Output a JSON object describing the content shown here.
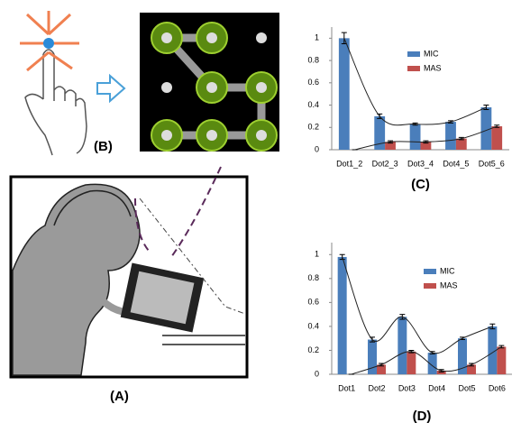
{
  "figure_labels": {
    "a": "(A)",
    "b": "(B)"
  },
  "chart_data": [
    {
      "type": "bar",
      "label": "(C)",
      "categories": [
        "Dot1_2",
        "Dot2_3",
        "Dot3_4",
        "Dot4_5",
        "Dot5_6"
      ],
      "series": [
        {
          "name": "MIC",
          "color": "#4a7ebb",
          "values": [
            1.0,
            0.3,
            0.23,
            0.25,
            0.38
          ],
          "errors": [
            0.05,
            0.02,
            0.01,
            0.01,
            0.02
          ]
        },
        {
          "name": "MAS",
          "color": "#c0504d",
          "values": [
            0.0,
            0.07,
            0.07,
            0.1,
            0.21
          ],
          "errors": [
            0.0,
            0.01,
            0.01,
            0.01,
            0.01
          ]
        }
      ],
      "ylim": [
        0,
        1.1
      ],
      "yticks": [
        0,
        0.2,
        0.4,
        0.6,
        0.8,
        1
      ]
    },
    {
      "type": "bar",
      "label": "(D)",
      "categories": [
        "Dot1",
        "Dot2",
        "Dot3",
        "Dot4",
        "Dot5",
        "Dot6"
      ],
      "series": [
        {
          "name": "MIC",
          "color": "#4a7ebb",
          "values": [
            0.98,
            0.29,
            0.48,
            0.18,
            0.3,
            0.4
          ],
          "errors": [
            0.02,
            0.02,
            0.02,
            0.01,
            0.01,
            0.02
          ]
        },
        {
          "name": "MAS",
          "color": "#c0504d",
          "values": [
            0.0,
            0.08,
            0.19,
            0.03,
            0.08,
            0.23
          ],
          "errors": [
            0.0,
            0.01,
            0.01,
            0.01,
            0.01,
            0.01
          ]
        }
      ],
      "ylim": [
        0,
        1.1
      ],
      "yticks": [
        0,
        0.2,
        0.4,
        0.6,
        0.8,
        1
      ]
    }
  ]
}
